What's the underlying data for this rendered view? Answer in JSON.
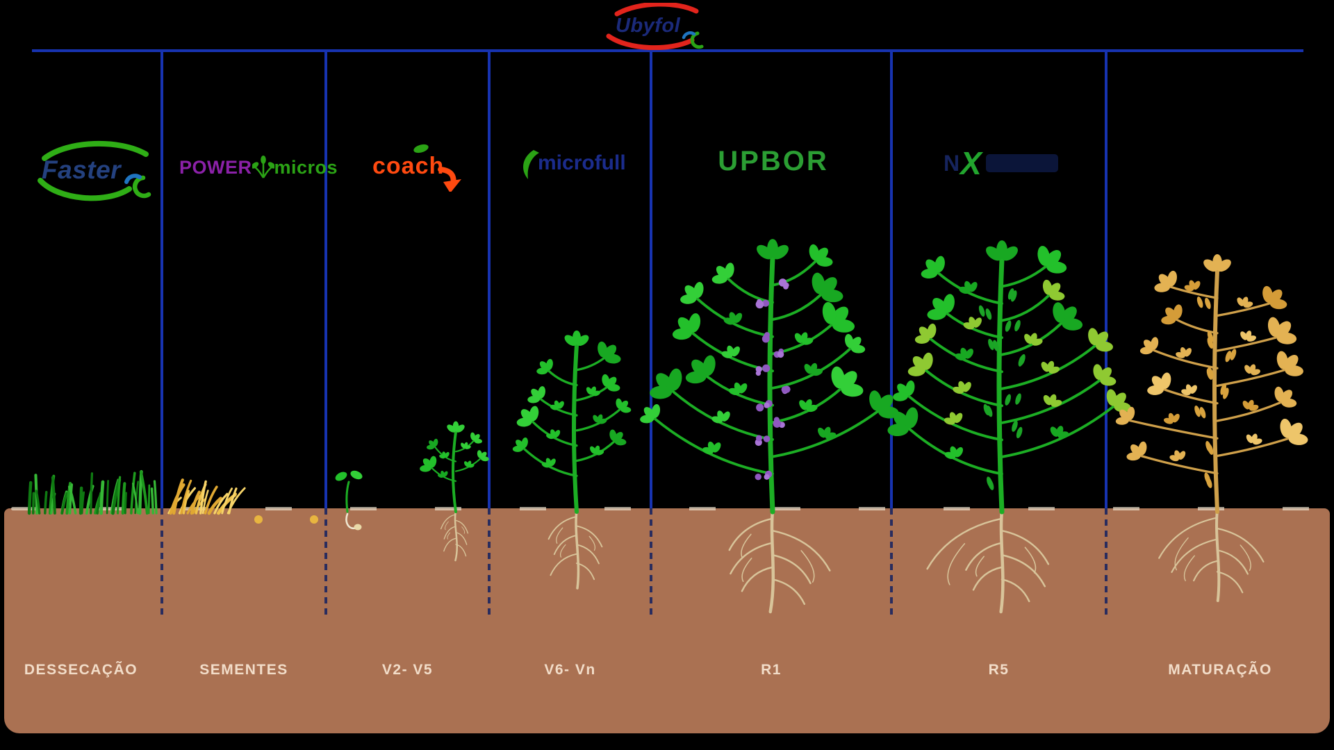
{
  "brand": {
    "name": "Ubyfol"
  },
  "stages": [
    {
      "label": "DESSECAÇÃO",
      "product": {
        "name": "Faster"
      }
    },
    {
      "label": "SEMENTES",
      "product": {
        "name_part1": "POWER",
        "name_part2": "micros"
      }
    },
    {
      "label": "V2- V5",
      "product": {
        "name": "coach"
      }
    },
    {
      "label": "V6- Vn",
      "product": {
        "name": "microfull"
      }
    },
    {
      "label": "R1",
      "product": {
        "name": "UPBOR"
      }
    },
    {
      "label": "R5",
      "product": {
        "prefix": "N",
        "accent": "X"
      }
    },
    {
      "label": "MATURAÇÃO"
    }
  ],
  "colors": {
    "background": "#000000",
    "timeline_blue": "#1733b0",
    "divider_dash": "#1b2560",
    "soil_brown": "#aa7152",
    "soil_highlight": "#e8ddc9",
    "label_text": "#f2ddc9",
    "root_tan": "#d8c49a",
    "stem_green": "#1cae24",
    "leaf_greens": [
      "#23c02b",
      "#18a822",
      "#33cf38"
    ],
    "leaf_green_yellow": "#8fc932",
    "flower_purple": "#a974d6",
    "flower_purple_dark": "#8f58c0",
    "pod_green": "#1ba526",
    "pod_gold": "#d9a33e",
    "grass_greens": [
      "#1e9a1e",
      "#0f7a12",
      "#36b836"
    ],
    "straw_golds": [
      "#f0c24a",
      "#e0a832",
      "#f7d469"
    ],
    "gold_leaves": [
      "#e3b253",
      "#d49c38",
      "#eec56a"
    ],
    "gold_stem": "#cfa04a",
    "seed_gold": "#e8b540",
    "sprout_white": "#efe6d0",
    "seed_tan": "#e9d9a8",
    "brand_red": "#e2241c",
    "brand_navy": "#1b2a7a",
    "faster_navy": "#24417f",
    "faster_green": "#2fae16",
    "swirl_blue": "#1f74c0",
    "power_purple": "#8b21a8",
    "micros_green": "#2ba315",
    "coach_orange": "#ff4a10",
    "microfull_navy": "#1b2c8c",
    "upbor_green": "#2b9e33",
    "x_green": "#22a52e",
    "x_navy": "#16245e"
  }
}
